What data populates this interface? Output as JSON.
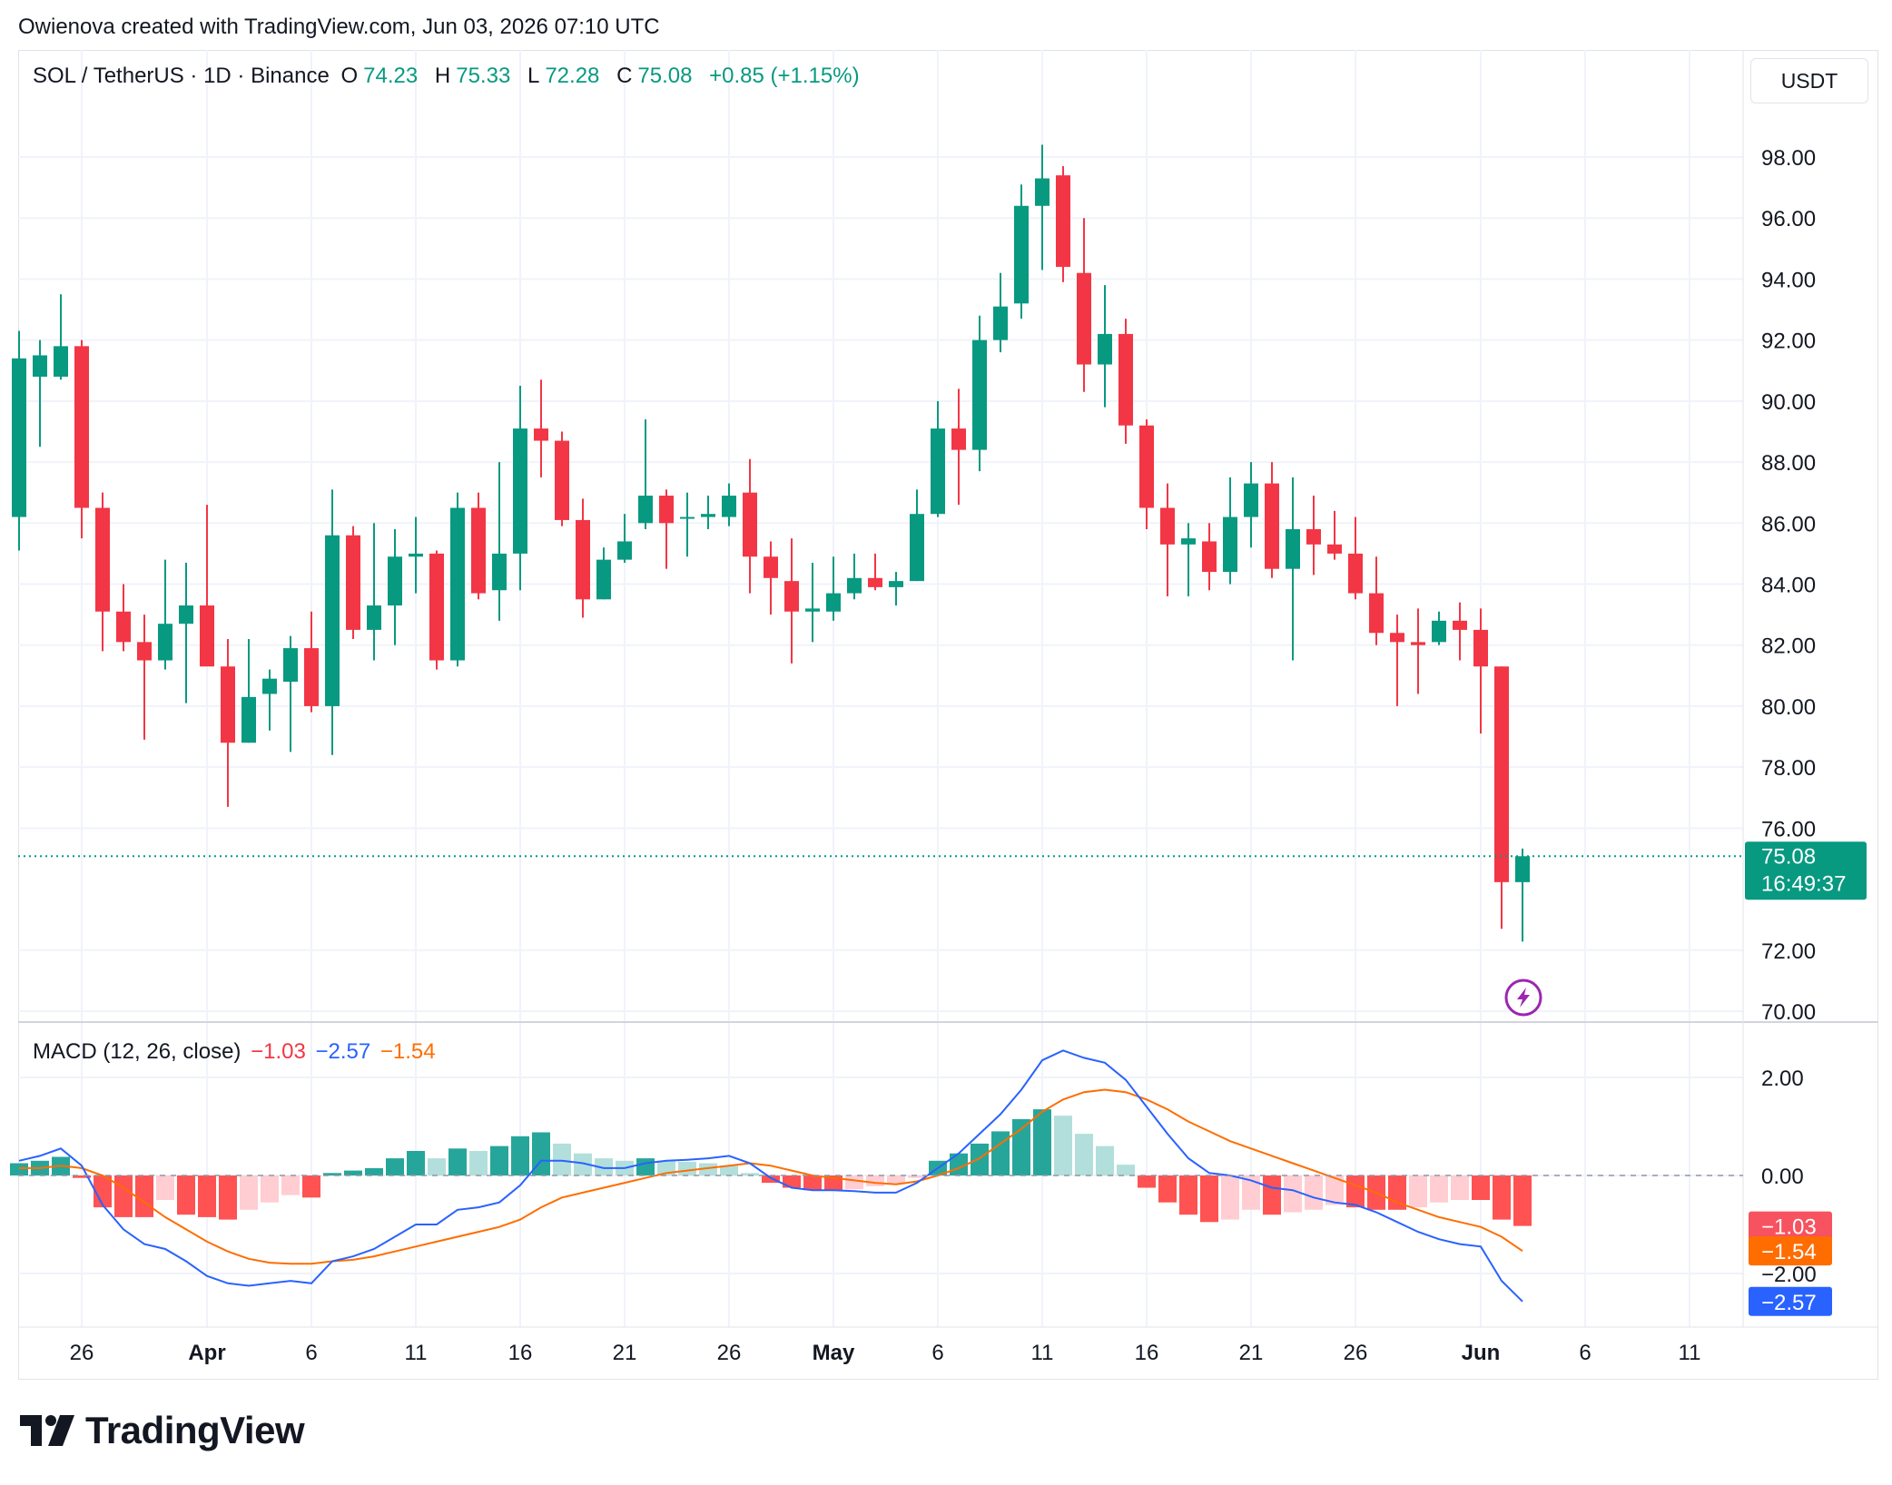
{
  "attribution": "Owienova created with TradingView.com, Jun 03, 2026 07:10 UTC",
  "header": {
    "symbol": "SOL / TetherUS · 1D · Binance",
    "open_label": "O",
    "open": "74.23",
    "high_label": "H",
    "high": "75.33",
    "low_label": "L",
    "low": "72.28",
    "close_label": "C",
    "close": "75.08",
    "change": "+0.85 (+1.15%)",
    "currency": "USDT"
  },
  "price_badge": {
    "price": "75.08",
    "countdown": "16:49:37"
  },
  "macd_legend": {
    "title": "MACD (12, 26, close)",
    "hist": "−1.03",
    "macd": "−2.57",
    "signal": "−1.54"
  },
  "macd_badges": [
    {
      "text": "−1.03",
      "color": "#f7525f"
    },
    {
      "text": "−1.54",
      "color": "#ff6d00"
    },
    {
      "text": "−2.57",
      "color": "#2962ff"
    }
  ],
  "brand": "TradingView",
  "colors": {
    "up": "#089981",
    "down": "#f23645",
    "macd": "#2962ff",
    "signal": "#ff6d00",
    "hist_up_strong": "#26a69a",
    "hist_up_weak": "#b2dfdb",
    "hist_down_strong": "#ff5252",
    "hist_down_weak": "#ffcdd2"
  },
  "icons": [
    "lightning-event-icon",
    "tradingview-logo-icon"
  ],
  "chart_data": [
    {
      "type": "candlestick",
      "title": "SOL / TetherUS · 1D · Binance",
      "ylim": [
        70,
        99
      ],
      "y_ticks": [
        "98.00",
        "96.00",
        "94.00",
        "92.00",
        "90.00",
        "88.00",
        "86.00",
        "84.00",
        "82.00",
        "80.00",
        "78.00",
        "76.00",
        "72.00",
        "70.00"
      ],
      "x_ticks": [
        {
          "label": "26",
          "date": "2026-03-26"
        },
        {
          "label": "Apr",
          "date": "2026-04-01"
        },
        {
          "label": "6",
          "date": "2026-04-06"
        },
        {
          "label": "11",
          "date": "2026-04-11"
        },
        {
          "label": "16",
          "date": "2026-04-16"
        },
        {
          "label": "21",
          "date": "2026-04-21"
        },
        {
          "label": "26",
          "date": "2026-04-26"
        },
        {
          "label": "May",
          "date": "2026-05-01"
        },
        {
          "label": "6",
          "date": "2026-05-06"
        },
        {
          "label": "11",
          "date": "2026-05-11"
        },
        {
          "label": "16",
          "date": "2026-05-16"
        },
        {
          "label": "21",
          "date": "2026-05-21"
        },
        {
          "label": "26",
          "date": "2026-05-26"
        },
        {
          "label": "Jun",
          "date": "2026-06-01"
        },
        {
          "label": "6",
          "date": "2026-06-06"
        },
        {
          "label": "11",
          "date": "2026-06-11"
        }
      ],
      "columns": [
        "date",
        "open",
        "high",
        "low",
        "close"
      ],
      "ohlc": [
        [
          "2026-03-23",
          86.2,
          92.3,
          85.1,
          91.4
        ],
        [
          "2026-03-24",
          90.8,
          92.0,
          88.5,
          91.5
        ],
        [
          "2026-03-25",
          90.8,
          93.5,
          90.7,
          91.8
        ],
        [
          "2026-03-26",
          91.8,
          92.0,
          85.5,
          86.5
        ],
        [
          "2026-03-27",
          86.5,
          87.0,
          81.8,
          83.1
        ],
        [
          "2026-03-28",
          83.1,
          84.0,
          81.8,
          82.1
        ],
        [
          "2026-03-29",
          82.1,
          83.0,
          78.9,
          81.5
        ],
        [
          "2026-03-30",
          81.5,
          84.8,
          81.2,
          82.7
        ],
        [
          "2026-03-31",
          82.7,
          84.7,
          80.1,
          83.3
        ],
        [
          "2026-04-01",
          83.3,
          86.6,
          81.5,
          81.3
        ],
        [
          "2026-04-02",
          81.3,
          82.2,
          76.7,
          78.8
        ],
        [
          "2026-04-03",
          78.8,
          82.2,
          78.8,
          80.3
        ],
        [
          "2026-04-04",
          80.4,
          81.2,
          79.2,
          80.9
        ],
        [
          "2026-04-05",
          80.8,
          82.3,
          78.5,
          81.9
        ],
        [
          "2026-04-06",
          81.9,
          83.1,
          79.8,
          80.0
        ],
        [
          "2026-04-07",
          80.0,
          87.1,
          78.4,
          85.6
        ],
        [
          "2026-04-08",
          85.6,
          85.9,
          82.2,
          82.5
        ],
        [
          "2026-04-09",
          82.5,
          86.0,
          81.5,
          83.3
        ],
        [
          "2026-04-10",
          83.3,
          85.8,
          82.0,
          84.9
        ],
        [
          "2026-04-11",
          84.9,
          86.2,
          83.7,
          85.0
        ],
        [
          "2026-04-12",
          85.0,
          85.1,
          81.2,
          81.5
        ],
        [
          "2026-04-13",
          81.5,
          87.0,
          81.3,
          86.5
        ],
        [
          "2026-04-14",
          86.5,
          87.0,
          83.5,
          83.7
        ],
        [
          "2026-04-15",
          83.8,
          88.0,
          82.8,
          85.0
        ],
        [
          "2026-04-16",
          85.0,
          90.5,
          83.8,
          89.1
        ],
        [
          "2026-04-17",
          89.1,
          90.7,
          87.5,
          88.7
        ],
        [
          "2026-04-18",
          88.7,
          89.0,
          85.9,
          86.1
        ],
        [
          "2026-04-19",
          86.1,
          86.8,
          82.9,
          83.5
        ],
        [
          "2026-04-20",
          83.5,
          85.2,
          83.5,
          84.8
        ],
        [
          "2026-04-21",
          84.8,
          86.3,
          84.7,
          85.4
        ],
        [
          "2026-04-22",
          86.0,
          89.4,
          85.8,
          86.9
        ],
        [
          "2026-04-23",
          86.9,
          87.1,
          84.5,
          86.0
        ],
        [
          "2026-04-24",
          86.2,
          87.0,
          84.9,
          86.2
        ],
        [
          "2026-04-25",
          86.2,
          86.9,
          85.8,
          86.3
        ],
        [
          "2026-04-26",
          86.2,
          87.3,
          85.9,
          86.9
        ],
        [
          "2026-04-27",
          87.0,
          88.1,
          83.7,
          84.9
        ],
        [
          "2026-04-28",
          84.9,
          85.4,
          83.0,
          84.2
        ],
        [
          "2026-04-29",
          84.1,
          85.5,
          81.4,
          83.1
        ],
        [
          "2026-04-30",
          83.1,
          84.7,
          82.1,
          83.2
        ],
        [
          "2026-05-01",
          83.1,
          84.9,
          82.8,
          83.7
        ],
        [
          "2026-05-02",
          83.7,
          85.0,
          83.5,
          84.2
        ],
        [
          "2026-05-03",
          84.2,
          85.0,
          83.8,
          83.9
        ],
        [
          "2026-05-04",
          83.9,
          84.4,
          83.3,
          84.1
        ],
        [
          "2026-05-05",
          84.1,
          87.1,
          84.1,
          86.3
        ],
        [
          "2026-05-06",
          86.3,
          90.0,
          86.2,
          89.1
        ],
        [
          "2026-05-07",
          89.1,
          90.4,
          86.6,
          88.4
        ],
        [
          "2026-05-08",
          88.4,
          92.8,
          87.7,
          92.0
        ],
        [
          "2026-05-09",
          92.0,
          94.2,
          91.6,
          93.1
        ],
        [
          "2026-05-10",
          93.2,
          97.1,
          92.7,
          96.4
        ],
        [
          "2026-05-11",
          96.4,
          98.4,
          94.3,
          97.3
        ],
        [
          "2026-05-12",
          97.4,
          97.7,
          93.9,
          94.4
        ],
        [
          "2026-05-13",
          94.2,
          96.0,
          90.3,
          91.2
        ],
        [
          "2026-05-14",
          91.2,
          93.8,
          89.8,
          92.2
        ],
        [
          "2026-05-15",
          92.2,
          92.7,
          88.6,
          89.2
        ],
        [
          "2026-05-16",
          89.2,
          89.4,
          85.8,
          86.5
        ],
        [
          "2026-05-17",
          86.5,
          87.3,
          83.6,
          85.3
        ],
        [
          "2026-05-18",
          85.3,
          86.0,
          83.6,
          85.5
        ],
        [
          "2026-05-19",
          85.4,
          86.0,
          83.8,
          84.4
        ],
        [
          "2026-05-20",
          84.4,
          87.5,
          84.0,
          86.2
        ],
        [
          "2026-05-21",
          86.2,
          88.0,
          85.2,
          87.3
        ],
        [
          "2026-05-22",
          87.3,
          88.0,
          84.2,
          84.5
        ],
        [
          "2026-05-23",
          84.5,
          87.5,
          81.5,
          85.8
        ],
        [
          "2026-05-24",
          85.8,
          86.9,
          84.3,
          85.3
        ],
        [
          "2026-05-25",
          85.3,
          86.4,
          84.8,
          85.0
        ],
        [
          "2026-05-26",
          85.0,
          86.2,
          83.5,
          83.7
        ],
        [
          "2026-05-27",
          83.7,
          84.9,
          82.0,
          82.4
        ],
        [
          "2026-05-28",
          82.4,
          83.0,
          80.0,
          82.1
        ],
        [
          "2026-05-29",
          82.1,
          83.2,
          80.4,
          82.0
        ],
        [
          "2026-05-30",
          82.1,
          83.1,
          82.0,
          82.8
        ],
        [
          "2026-05-31",
          82.8,
          83.4,
          81.5,
          82.5
        ],
        [
          "2026-06-01",
          82.5,
          83.2,
          79.1,
          81.3
        ],
        [
          "2026-06-02",
          81.3,
          81.3,
          72.7,
          74.23
        ],
        [
          "2026-06-03",
          74.23,
          75.33,
          72.28,
          75.08
        ]
      ],
      "last_price": 75.08
    },
    {
      "type": "macd",
      "title": "MACD (12, 26, close)",
      "ylim": [
        -3.0,
        3.0
      ],
      "y_ticks": [
        "2.00",
        "0.00",
        "-2.00"
      ],
      "series": [
        {
          "name": "Histogram",
          "values": [
            0.25,
            0.3,
            0.38,
            -0.05,
            -0.65,
            -0.85,
            -0.85,
            -0.5,
            -0.8,
            -0.85,
            -0.9,
            -0.7,
            -0.55,
            -0.4,
            -0.45,
            0.05,
            0.1,
            0.15,
            0.35,
            0.5,
            0.35,
            0.55,
            0.5,
            0.6,
            0.8,
            0.88,
            0.65,
            0.45,
            0.35,
            0.3,
            0.35,
            0.3,
            0.28,
            0.25,
            0.2,
            0.05,
            -0.15,
            -0.25,
            -0.3,
            -0.3,
            -0.28,
            -0.22,
            -0.18,
            -0.05,
            0.3,
            0.45,
            0.65,
            0.9,
            1.15,
            1.35,
            1.22,
            0.85,
            0.6,
            0.22,
            -0.25,
            -0.55,
            -0.8,
            -0.95,
            -0.9,
            -0.7,
            -0.8,
            -0.75,
            -0.7,
            -0.6,
            -0.65,
            -0.7,
            -0.7,
            -0.65,
            -0.55,
            -0.5,
            -0.5,
            -0.9,
            -1.03
          ]
        },
        {
          "name": "MACD",
          "values": [
            0.3,
            0.4,
            0.55,
            0.2,
            -0.6,
            -1.1,
            -1.4,
            -1.5,
            -1.75,
            -2.05,
            -2.2,
            -2.25,
            -2.2,
            -2.15,
            -2.2,
            -1.75,
            -1.65,
            -1.5,
            -1.25,
            -1.0,
            -1.0,
            -0.7,
            -0.65,
            -0.55,
            -0.2,
            0.3,
            0.3,
            0.25,
            0.15,
            0.15,
            0.25,
            0.3,
            0.32,
            0.35,
            0.4,
            0.25,
            -0.05,
            -0.25,
            -0.3,
            -0.3,
            -0.32,
            -0.35,
            -0.35,
            -0.15,
            0.15,
            0.45,
            0.85,
            1.25,
            1.75,
            2.35,
            2.55,
            2.4,
            2.3,
            1.95,
            1.4,
            0.85,
            0.35,
            0.05,
            0.0,
            -0.1,
            -0.25,
            -0.3,
            -0.45,
            -0.55,
            -0.6,
            -0.75,
            -0.95,
            -1.15,
            -1.3,
            -1.4,
            -1.45,
            -2.15,
            -2.57
          ]
        },
        {
          "name": "Signal",
          "values": [
            0.15,
            0.15,
            0.2,
            0.15,
            0.0,
            -0.25,
            -0.55,
            -0.85,
            -1.1,
            -1.35,
            -1.55,
            -1.7,
            -1.78,
            -1.8,
            -1.8,
            -1.75,
            -1.72,
            -1.65,
            -1.55,
            -1.45,
            -1.35,
            -1.25,
            -1.15,
            -1.05,
            -0.9,
            -0.65,
            -0.45,
            -0.35,
            -0.25,
            -0.15,
            -0.05,
            0.05,
            0.1,
            0.15,
            0.2,
            0.25,
            0.2,
            0.1,
            0.0,
            -0.05,
            -0.1,
            -0.15,
            -0.18,
            -0.12,
            0.0,
            0.15,
            0.35,
            0.65,
            0.95,
            1.3,
            1.55,
            1.7,
            1.75,
            1.7,
            1.55,
            1.35,
            1.1,
            0.9,
            0.7,
            0.55,
            0.4,
            0.25,
            0.1,
            -0.05,
            -0.2,
            -0.35,
            -0.55,
            -0.7,
            -0.85,
            -0.95,
            -1.05,
            -1.25,
            -1.54
          ]
        }
      ]
    }
  ]
}
